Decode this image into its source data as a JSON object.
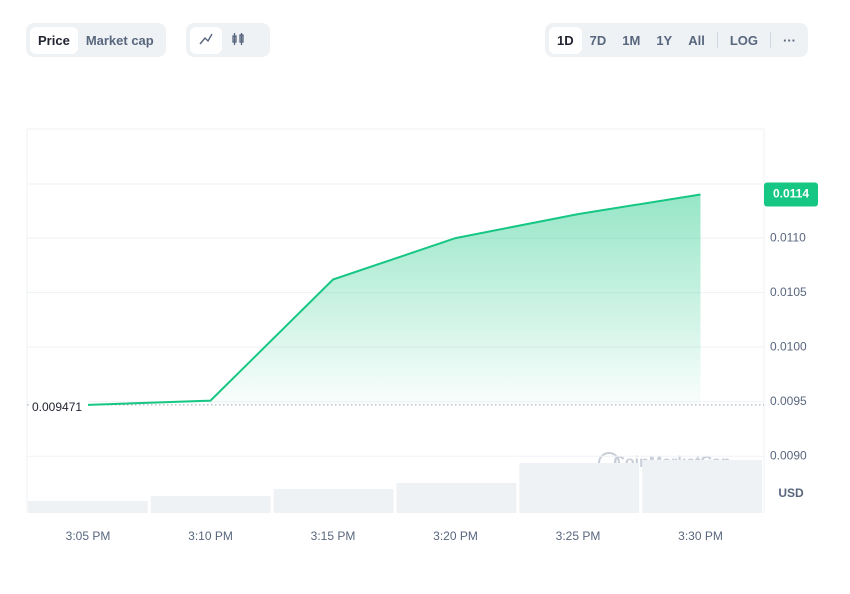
{
  "toolbar": {
    "modes": [
      "Price",
      "Market cap"
    ],
    "ranges": [
      "1D",
      "7D",
      "1M",
      "1Y",
      "All"
    ],
    "log": "LOG",
    "more": "···"
  },
  "chart_data": {
    "type": "line",
    "categories": [
      "3:05 PM",
      "3:10 PM",
      "3:15 PM",
      "3:20 PM",
      "3:25 PM",
      "3:30 PM"
    ],
    "series": [
      {
        "name": "Price",
        "color": "#16c784",
        "values": [
          0.009471,
          0.00951,
          0.01062,
          0.011,
          0.01122,
          0.0114
        ]
      }
    ],
    "volume": {
      "color": "#eff2f5",
      "values": [
        12,
        17,
        24,
        30,
        50,
        53
      ]
    },
    "volume_ylim": [
      0,
      384
    ],
    "ylim": [
      0.00848,
      0.012
    ],
    "yticks": [
      {
        "value": 0.009,
        "label": "0.0090"
      },
      {
        "value": 0.0095,
        "label": "0.0095"
      },
      {
        "value": 0.01,
        "label": "0.0100"
      },
      {
        "value": 0.0105,
        "label": "0.0105"
      },
      {
        "value": 0.011,
        "label": "0.0110"
      }
    ],
    "unit": "USD",
    "watermark": "CoinMarketCap",
    "grid": true
  }
}
